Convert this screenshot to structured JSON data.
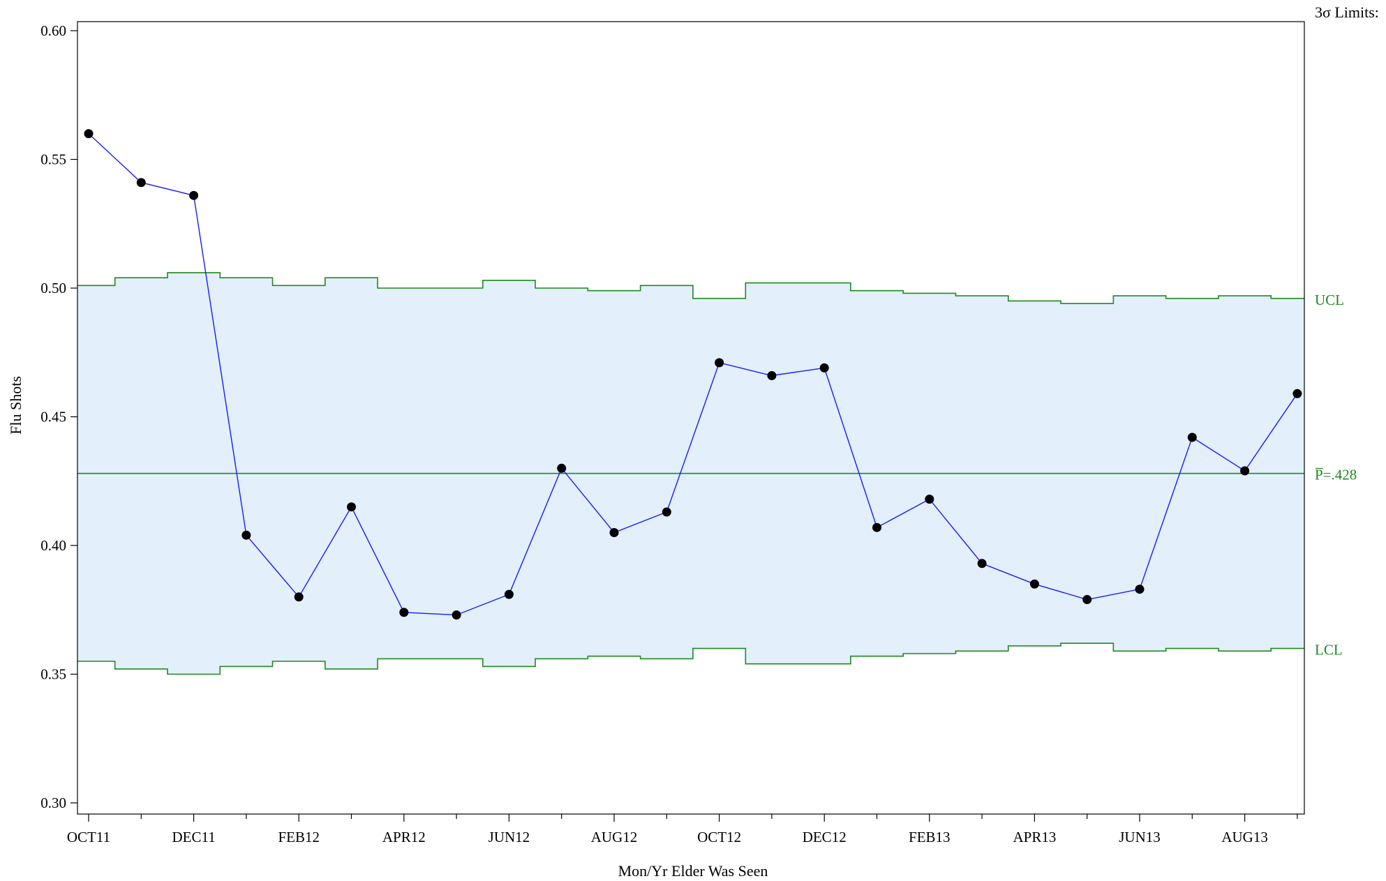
{
  "chart_data": {
    "type": "line",
    "subtype": "p-chart",
    "limits_heading": "3σ Limits:",
    "xlabel": "Mon/Yr Elder Was Seen",
    "ylabel": "Flu Shots",
    "ylim": [
      0.3,
      0.6
    ],
    "yticks": [
      "0.30",
      "0.35",
      "0.40",
      "0.45",
      "0.50",
      "0.55",
      "0.60"
    ],
    "categories": [
      "OCT11",
      "NOV11",
      "DEC11",
      "JAN12",
      "FEB12",
      "MAR12",
      "APR12",
      "MAY12",
      "JUN12",
      "JUL12",
      "AUG12",
      "SEP12",
      "OCT12",
      "NOV12",
      "DEC12",
      "JAN13",
      "FEB13",
      "MAR13",
      "APR13",
      "MAY13",
      "JUN13",
      "JUL13",
      "AUG13",
      "SEP13"
    ],
    "xtick_labels": [
      "OCT11",
      "DEC11",
      "FEB12",
      "APR12",
      "JUN12",
      "AUG12",
      "OCT12",
      "DEC12",
      "FEB13",
      "APR13",
      "JUN13",
      "AUG13"
    ],
    "series": [
      {
        "values": [
          0.56,
          0.541,
          0.536,
          0.404,
          0.38,
          0.415,
          0.374,
          0.373,
          0.381,
          0.43,
          0.405,
          0.413,
          0.471,
          0.466,
          0.469,
          0.407,
          0.418,
          0.393,
          0.385,
          0.379,
          0.383,
          0.442,
          0.429,
          0.459
        ]
      }
    ],
    "center_line": {
      "value": 0.428,
      "label": "P̅=.428"
    },
    "ucl": {
      "label": "UCL",
      "values": [
        0.501,
        0.504,
        0.506,
        0.504,
        0.501,
        0.504,
        0.5,
        0.5,
        0.503,
        0.5,
        0.499,
        0.501,
        0.496,
        0.502,
        0.502,
        0.499,
        0.498,
        0.497,
        0.495,
        0.494,
        0.497,
        0.496,
        0.497,
        0.496
      ]
    },
    "lcl": {
      "label": "LCL",
      "values": [
        0.355,
        0.352,
        0.35,
        0.353,
        0.355,
        0.352,
        0.356,
        0.356,
        0.353,
        0.356,
        0.357,
        0.356,
        0.36,
        0.354,
        0.354,
        0.357,
        0.358,
        0.359,
        0.361,
        0.362,
        0.359,
        0.36,
        0.359,
        0.36
      ]
    },
    "colors": {
      "series_line": "#1a1aff",
      "marker": "#000000",
      "limits": "#1e8a1e",
      "band_fill": "#e3effb",
      "frame": "#000000"
    },
    "grid": false,
    "legend": "none"
  }
}
